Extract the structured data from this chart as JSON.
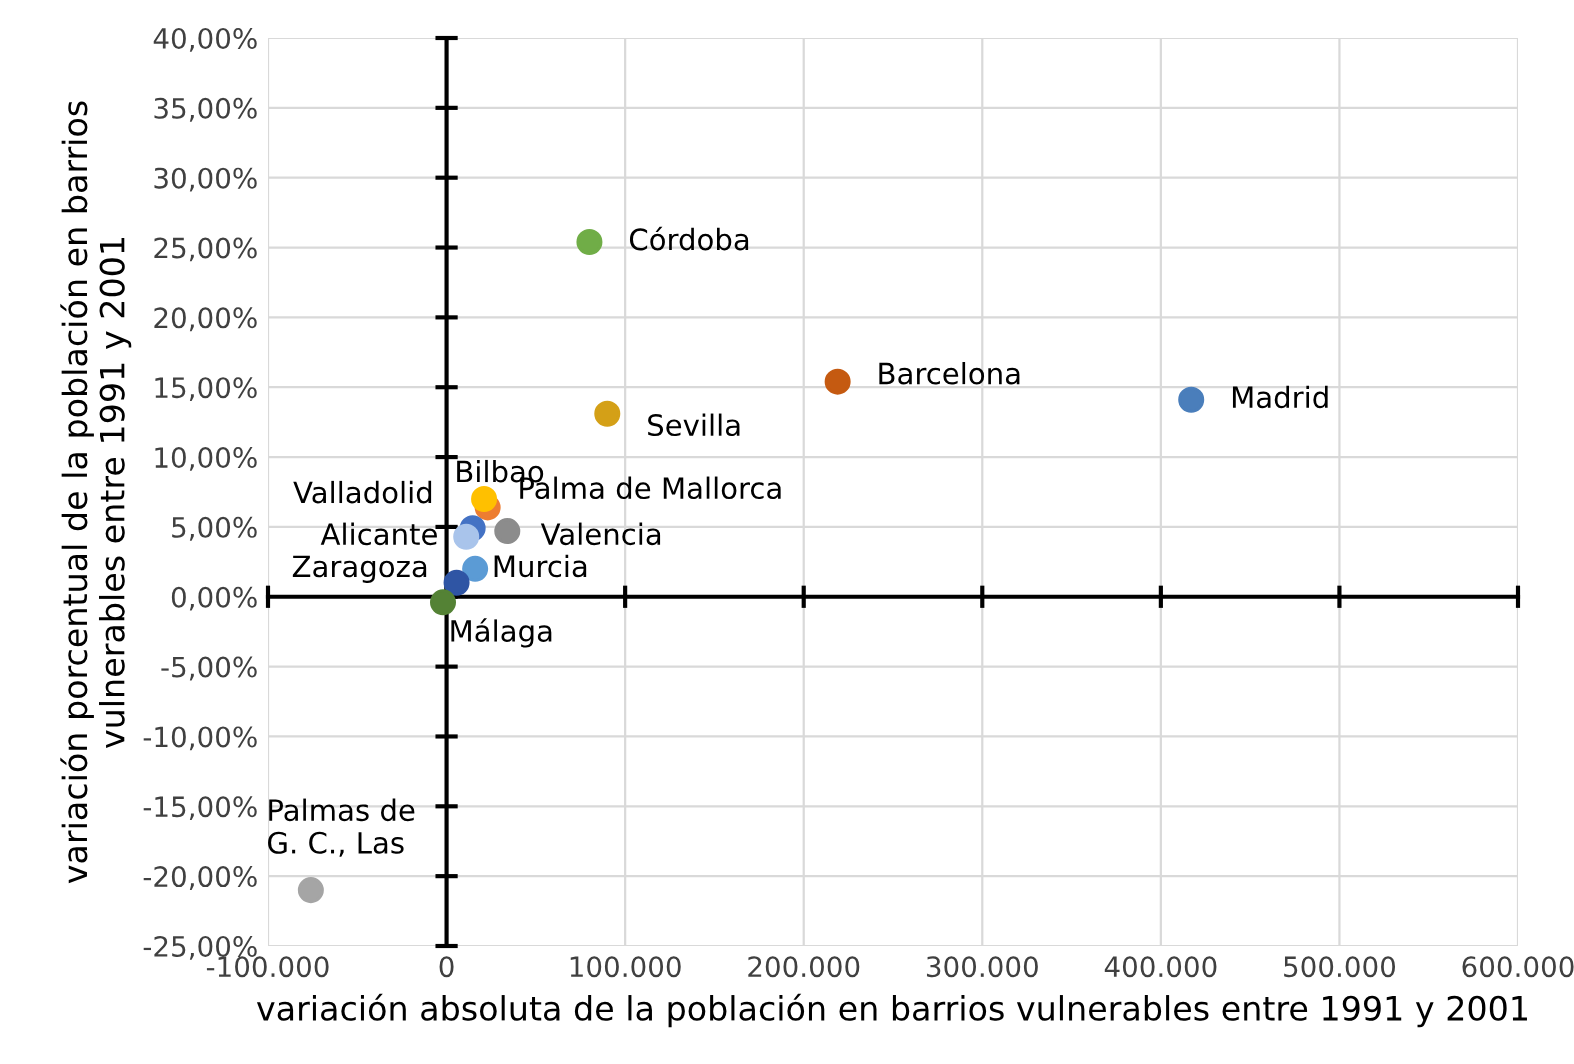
{
  "chart_data": {
    "type": "scatter",
    "xlabel": "variación absoluta de la población en barrios vulnerables entre 1991 y 2001",
    "ylabel": "variación porcentual de la población en barrios\nvulnerables entre 1991 y 2001",
    "series": [
      {
        "name": "Córdoba",
        "color": "#70ad47",
        "x": [
          80000
        ],
        "values": [
          25.4
        ]
      },
      {
        "name": "Barcelona",
        "color": "#c55a11",
        "x": [
          219000
        ],
        "values": [
          15.4
        ]
      },
      {
        "name": "Madrid",
        "color": "#4a7ebb",
        "x": [
          417000
        ],
        "values": [
          14.1
        ]
      },
      {
        "name": "Sevilla",
        "color": "#d4a017",
        "x": [
          90000
        ],
        "values": [
          13.1
        ]
      },
      {
        "name": "Bilbao",
        "color": "#ed7d31",
        "x": [
          23000
        ],
        "values": [
          6.4
        ]
      },
      {
        "name": "Palma de Mallorca",
        "color": "#ffc000",
        "x": [
          21000
        ],
        "values": [
          7.0
        ]
      },
      {
        "name": "Valladolid",
        "color": "#4472c4",
        "x": [
          14600
        ],
        "values": [
          4.9
        ]
      },
      {
        "name": "Alicante",
        "color": "#a9c4eb",
        "x": [
          11000
        ],
        "values": [
          4.3
        ]
      },
      {
        "name": "Valencia",
        "color": "#8c8c8c",
        "x": [
          34000
        ],
        "values": [
          4.7
        ]
      },
      {
        "name": "Murcia",
        "color": "#5b9bd5",
        "x": [
          16000
        ],
        "values": [
          2.0
        ]
      },
      {
        "name": "Zaragoza",
        "color": "#2f55a4",
        "x": [
          5600
        ],
        "values": [
          1.0
        ]
      },
      {
        "name": "Málaga",
        "color": "#548235",
        "x": [
          -2000
        ],
        "values": [
          -0.4
        ]
      },
      {
        "name": "Palmas de\nG. C., Las",
        "color": "#a5a5a5",
        "x": [
          -76000
        ],
        "values": [
          -21.0
        ]
      }
    ],
    "xlim": [
      -100000,
      600000
    ],
    "xticks": [
      {
        "value": -100000,
        "label": "-100.000"
      },
      0,
      {
        "value": 100000,
        "label": "100.000"
      },
      {
        "value": 200000,
        "label": "200.000"
      },
      {
        "value": 300000,
        "label": "300.000"
      },
      {
        "value": 400000,
        "label": "400.000"
      },
      {
        "value": 500000,
        "label": "500.000"
      },
      {
        "value": 600000,
        "label": "600.000"
      }
    ],
    "ylim": [
      -25,
      40
    ],
    "yticks": [
      {
        "value": -25,
        "label": "-25,00%"
      },
      {
        "value": -20,
        "label": "-20,00%"
      },
      {
        "value": -15,
        "label": "-15,00%"
      },
      {
        "value": -10,
        "label": "-10,00%"
      },
      {
        "value": -5,
        "label": "-5,00%"
      },
      {
        "value": 0,
        "label": "0,00%"
      },
      {
        "value": 5,
        "label": "5,00%"
      },
      {
        "value": 10,
        "label": "10,00%"
      },
      {
        "value": 15,
        "label": "15,00%"
      },
      {
        "value": 20,
        "label": "20,00%"
      },
      {
        "value": 25,
        "label": "25,00%"
      },
      {
        "value": 30,
        "label": "30,00%"
      },
      {
        "value": 35,
        "label": "35,00%"
      },
      {
        "value": 40,
        "label": "40,00%"
      }
    ],
    "grid": true,
    "marker": "circle",
    "legend": false
  }
}
